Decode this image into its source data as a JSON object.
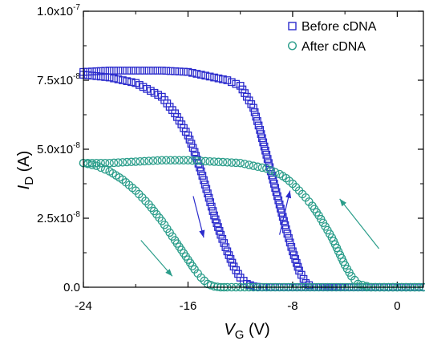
{
  "chart_data": {
    "type": "scatter",
    "xlim": [
      -24,
      2
    ],
    "ylim": [
      0,
      1e-07
    ],
    "x_ticks": [
      -24,
      -16,
      -8,
      0
    ],
    "x_tick_labels": [
      "-24",
      "-16",
      "-8",
      "0"
    ],
    "y_ticks": [
      0,
      2.5e-08,
      5e-08,
      7.5e-08,
      1e-07
    ],
    "y_tick_labels": [
      {
        "mantissa": "0.0",
        "exp": ""
      },
      {
        "mantissa": "2.5x10",
        "exp": "-8"
      },
      {
        "mantissa": "5.0x10",
        "exp": "-8"
      },
      {
        "mantissa": "7.5x10",
        "exp": "-8"
      },
      {
        "mantissa": "1.0x10",
        "exp": "-7"
      }
    ],
    "xlabel": {
      "var": "V",
      "sub": "G",
      "unit": " (V)"
    },
    "ylabel": {
      "var": "I",
      "sub": "D",
      "unit": " (A)"
    },
    "grid": false,
    "legend_position": "top-right",
    "series": [
      {
        "name": "Before cDNA",
        "marker": "square",
        "color": "#2b2bcc",
        "forward_sweep": {
          "x": [
            -24,
            -22,
            -20,
            -18,
            -17,
            -16,
            -15.5,
            -15,
            -14.5,
            -14,
            -13.5,
            -13,
            -12.5,
            -12,
            -11.5,
            -11,
            -10.5,
            -10,
            -8,
            -4,
            0,
            2
          ],
          "y": [
            7.7e-08,
            7.6e-08,
            7.4e-08,
            6.9e-08,
            6.3e-08,
            5.5e-08,
            4.9e-08,
            4.2e-08,
            3.4e-08,
            2.6e-08,
            1.9e-08,
            1.3e-08,
            7.5e-09,
            3.5e-09,
            1.2e-09,
            3e-10,
            0,
            0,
            0,
            0,
            0,
            0
          ]
        },
        "reverse_sweep": {
          "x": [
            2,
            0,
            -4,
            -6.5,
            -7,
            -7.5,
            -8,
            -8.5,
            -9,
            -9.5,
            -10,
            -10.5,
            -11,
            -12,
            -13,
            -14,
            -16,
            -18,
            -20,
            -22,
            -24
          ],
          "y": [
            0,
            0,
            0,
            0,
            1.5e-09,
            6e-09,
            1.3e-08,
            2.1e-08,
            3e-08,
            3.9e-08,
            4.8e-08,
            5.7e-08,
            6.5e-08,
            7.3e-08,
            7.5e-08,
            7.6e-08,
            7.8e-08,
            7.85e-08,
            7.85e-08,
            7.85e-08,
            7.8e-08
          ]
        }
      },
      {
        "name": "After cDNA",
        "marker": "circle",
        "color": "#2a9d8a",
        "forward_sweep": {
          "x": [
            -24,
            -23,
            -22,
            -21,
            -20,
            -19,
            -18,
            -17,
            -16.5,
            -16,
            -15.5,
            -15,
            -14.5,
            -14,
            -13.5,
            -13,
            -12,
            -10,
            -8,
            -4,
            0,
            2
          ],
          "y": [
            4.5e-08,
            4.4e-08,
            4.2e-08,
            3.9e-08,
            3.5e-08,
            3e-08,
            2.4e-08,
            1.7e-08,
            1.35e-08,
            1e-08,
            6.5e-09,
            3.5e-09,
            1.2e-09,
            3e-10,
            0,
            0,
            0,
            0,
            0,
            0,
            0,
            0
          ]
        },
        "reverse_sweep": {
          "x": [
            2,
            0,
            -2,
            -3,
            -3.5,
            -4,
            -4.5,
            -5,
            -5.5,
            -6,
            -6.5,
            -7,
            -7.5,
            -8,
            -8.5,
            -9,
            -10,
            -12,
            -14,
            -16,
            -18,
            -20,
            -22,
            -24
          ],
          "y": [
            0,
            0,
            0,
            1.2e-09,
            4e-09,
            8e-09,
            1.3e-08,
            1.8e-08,
            2.2e-08,
            2.6e-08,
            2.95e-08,
            3.25e-08,
            3.5e-08,
            3.75e-08,
            3.95e-08,
            4.1e-08,
            4.3e-08,
            4.5e-08,
            4.55e-08,
            4.6e-08,
            4.6e-08,
            4.55e-08,
            4.5e-08,
            4.5e-08
          ]
        }
      }
    ],
    "sweep_arrows": [
      {
        "series": "Before cDNA",
        "from": [
          -15.6,
          3.3e-08
        ],
        "to": [
          -14.8,
          1.8e-08
        ]
      },
      {
        "series": "Before cDNA",
        "from": [
          -9.0,
          1.9e-08
        ],
        "to": [
          -8.2,
          3.5e-08
        ]
      },
      {
        "series": "After cDNA",
        "from": [
          -19.6,
          1.7e-08
        ],
        "to": [
          -17.2,
          4e-09
        ]
      },
      {
        "series": "After cDNA",
        "from": [
          -1.4,
          1.4e-08
        ],
        "to": [
          -4.4,
          3.2e-08
        ]
      }
    ]
  }
}
